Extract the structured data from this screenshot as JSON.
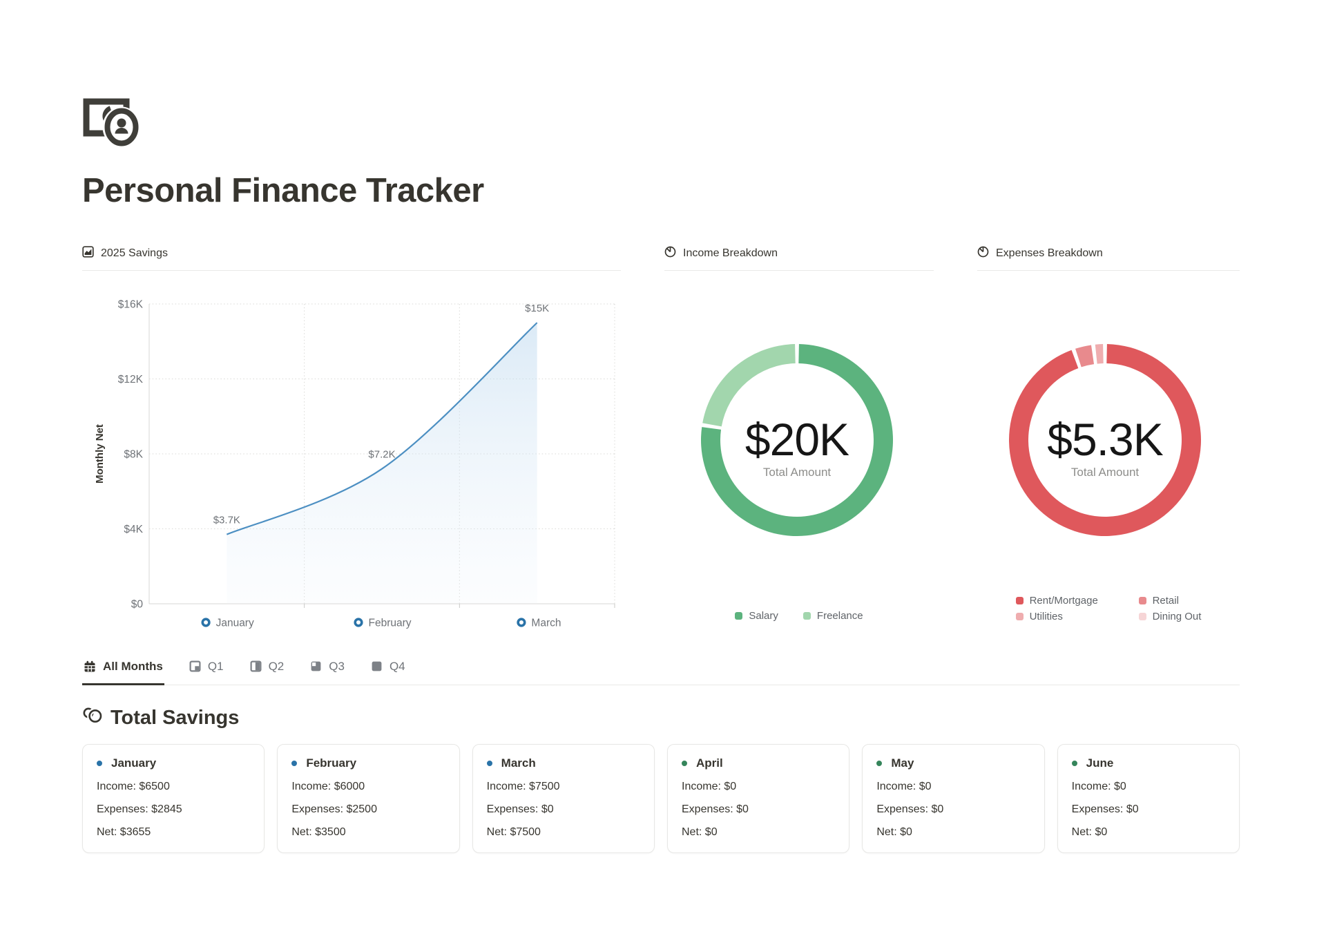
{
  "app": {
    "title": "Personal Finance Tracker",
    "logo_icon": "banknote-coin-icon"
  },
  "savings": {
    "header": "2025 Savings",
    "header_icon": "area-chart-icon",
    "chart_data": {
      "type": "area",
      "title": "2025 Savings",
      "categories": [
        "January",
        "February",
        "March"
      ],
      "series": [
        {
          "name": "Monthly Net",
          "values": [
            3700,
            7200,
            15000
          ]
        }
      ],
      "point_labels": [
        "$3.7K",
        "$7.2K",
        "$15K"
      ],
      "ylabel": "Monthly Net",
      "ylim": [
        0,
        16000
      ],
      "yticks": [
        {
          "value": 0,
          "label": "$0"
        },
        {
          "value": 4000,
          "label": "$4K"
        },
        {
          "value": 8000,
          "label": "$8K"
        },
        {
          "value": 12000,
          "label": "$12K"
        },
        {
          "value": 16000,
          "label": "$16K"
        }
      ],
      "grid": "dotted",
      "line_color": "#4c8fc2",
      "area_color": "#cde1f2",
      "marker_color": "#2a73a8"
    }
  },
  "income": {
    "header": "Income Breakdown",
    "header_icon": "pie-chart-icon",
    "center_value": "$20K",
    "center_caption": "Total Amount",
    "chart_data": {
      "type": "pie",
      "total": 20000,
      "total_label": "$20K",
      "segments": [
        {
          "label": "Salary",
          "value": 15500,
          "color": "#5cb37e"
        },
        {
          "label": "Freelance",
          "value": 4500,
          "color": "#a2d6ad"
        }
      ],
      "legend_position": "bottom"
    }
  },
  "expenses": {
    "header": "Expenses Breakdown",
    "header_icon": "pie-chart-icon",
    "center_value": "$5.3K",
    "center_caption": "Total Amount",
    "chart_data": {
      "type": "pie",
      "total": 5345,
      "total_label": "$5.3K",
      "segments": [
        {
          "label": "Rent/Mortgage",
          "value": 5060,
          "color": "#df585c"
        },
        {
          "label": "Retail",
          "value": 180,
          "color": "#e88a8d"
        },
        {
          "label": "Utilities",
          "value": 105,
          "color": "#efadaf"
        },
        {
          "label": "Dining Out",
          "value": 0,
          "color": "#f6d5d6"
        }
      ],
      "legend_position": "bottom"
    }
  },
  "filter_tabs": [
    {
      "label": "All Months",
      "icon": "calendar-icon",
      "active": true
    },
    {
      "label": "Q1",
      "icon": "quarter-1-icon",
      "active": false
    },
    {
      "label": "Q2",
      "icon": "quarter-2-icon",
      "active": false
    },
    {
      "label": "Q3",
      "icon": "quarter-3-icon",
      "active": false
    },
    {
      "label": "Q4",
      "icon": "quarter-4-icon",
      "active": false
    }
  ],
  "totals_section": {
    "title": "Total Savings",
    "icon": "coins-icon"
  },
  "month_cards": [
    {
      "month": "January",
      "marker_color": "#2a73a8",
      "income": "Income: $6500",
      "expenses": "Expenses: $2845",
      "net": "Net: $3655"
    },
    {
      "month": "February",
      "marker_color": "#2a73a8",
      "income": "Income: $6000",
      "expenses": "Expenses: $2500",
      "net": "Net: $3500"
    },
    {
      "month": "March",
      "marker_color": "#2a73a8",
      "income": "Income: $7500",
      "expenses": "Expenses: $0",
      "net": "Net: $7500"
    },
    {
      "month": "April",
      "marker_color": "#35855b",
      "income": "Income: $0",
      "expenses": "Expenses: $0",
      "net": "Net: $0"
    },
    {
      "month": "May",
      "marker_color": "#35855b",
      "income": "Income: $0",
      "expenses": "Expenses: $0",
      "net": "Net: $0"
    },
    {
      "month": "June",
      "marker_color": "#35855b",
      "income": "Income: $0",
      "expenses": "Expenses: $0",
      "net": "Net: $0"
    }
  ]
}
